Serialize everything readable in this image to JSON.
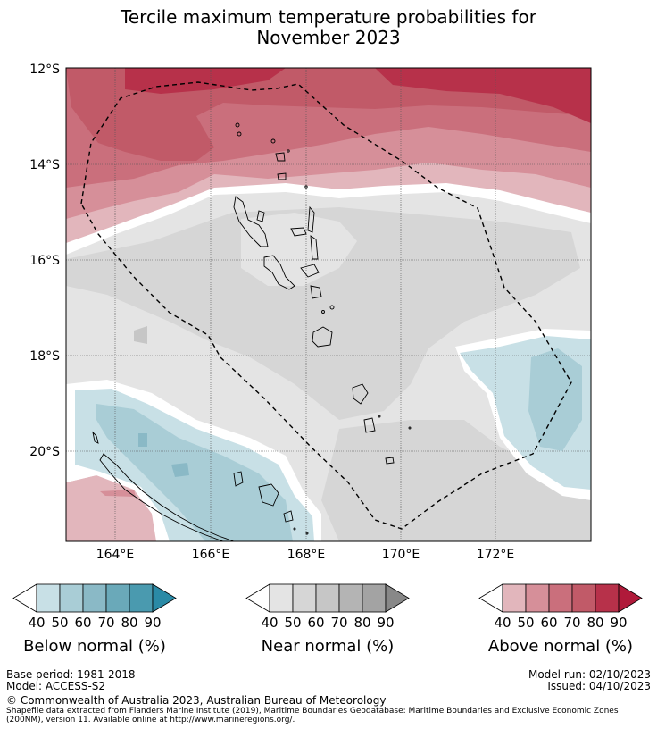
{
  "title": {
    "line1": "Tercile maximum temperature probabilities for",
    "line2": "November 2023"
  },
  "map": {
    "lat_ticks": [
      "12°S",
      "14°S",
      "16°S",
      "18°S",
      "20°S"
    ],
    "lon_ticks": [
      "164°E",
      "166°E",
      "168°E",
      "170°E",
      "172°E"
    ]
  },
  "legends": [
    {
      "label": "Below normal (%)",
      "ticks": [
        "40",
        "50",
        "60",
        "70",
        "80",
        "90"
      ],
      "colors": [
        "#c8e0e6",
        "#a9cdd6",
        "#8ab9c6",
        "#6aa9b9",
        "#4a9aaf",
        "#2a8aa6"
      ]
    },
    {
      "label": "Near normal (%)",
      "ticks": [
        "40",
        "50",
        "60",
        "70",
        "80",
        "90"
      ],
      "colors": [
        "#e4e4e4",
        "#d6d6d6",
        "#c6c6c6",
        "#b4b4b4",
        "#a3a3a3",
        "#888888"
      ]
    },
    {
      "label": "Above normal (%)",
      "ticks": [
        "40",
        "50",
        "60",
        "70",
        "80",
        "90"
      ],
      "colors": [
        "#e2b6bc",
        "#d68f99",
        "#ca6f7c",
        "#c15a68",
        "#b7314a",
        "#b01a3a"
      ]
    }
  ],
  "footer": {
    "base_period": "Base period: 1981-2018",
    "model": "Model: ACCESS-S2",
    "model_run": "Model run: 02/10/2023",
    "issued": "Issued: 04/10/2023",
    "copyright": "© Commonwealth of Australia 2023, Australian Bureau of Meteorology",
    "shapefile_line1": "Shapefile data extracted from Flanders Marine Institute (2019), Maritime Boundaries Geodatabase: Maritime Boundaries and Exclusive Economic Zones",
    "shapefile_line2": "(200NM), version 11. Available online at http://www.marineregions.org/."
  }
}
